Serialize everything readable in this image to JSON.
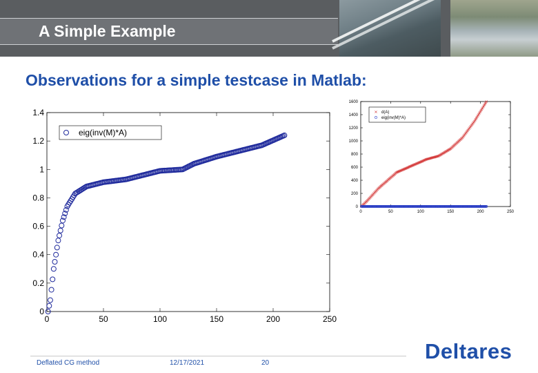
{
  "header": {
    "title": "A Simple Example"
  },
  "subtitle": "Observations for a simple testcase in Matlab:",
  "charts": [
    {
      "type": "scatter",
      "xlim": [
        0,
        250
      ],
      "ylim": [
        0,
        1.4
      ],
      "x_ticks": [
        "0",
        "50",
        "100",
        "150",
        "200",
        "250"
      ],
      "y_ticks": [
        "0",
        "0.2",
        "0.4",
        "0.6",
        "0.8",
        "1",
        "1.2",
        "1.4"
      ],
      "legend": {
        "position": "top-left",
        "entries": [
          "eig(inv(M)*A)"
        ]
      },
      "series": [
        {
          "name": "eig(inv(M)*A)",
          "color": "#1f2a9c",
          "marker": "circle",
          "profile": [
            [
              1,
              0.0
            ],
            [
              3,
              0.08
            ],
            [
              6,
              0.3
            ],
            [
              10,
              0.5
            ],
            [
              14,
              0.64
            ],
            [
              18,
              0.74
            ],
            [
              25,
              0.83
            ],
            [
              35,
              0.88
            ],
            [
              50,
              0.91
            ],
            [
              70,
              0.93
            ],
            [
              90,
              0.97
            ],
            [
              100,
              0.99
            ],
            [
              120,
              1.0
            ],
            [
              130,
              1.04
            ],
            [
              150,
              1.09
            ],
            [
              170,
              1.13
            ],
            [
              190,
              1.17
            ],
            [
              210,
              1.24
            ]
          ],
          "count": 210
        }
      ]
    },
    {
      "type": "scatter",
      "xlim": [
        0,
        250
      ],
      "ylim": [
        0,
        1600
      ],
      "x_ticks": [
        "0",
        "50",
        "100",
        "150",
        "200",
        "250"
      ],
      "y_ticks": [
        "0",
        "200",
        "400",
        "600",
        "800",
        "1000",
        "1200",
        "1400",
        "1600"
      ],
      "legend": {
        "position": "top-left",
        "entries": [
          "d(A)",
          "eig(inv(M)*A)"
        ]
      },
      "series": [
        {
          "name": "d(A)",
          "color": "#d43a3a",
          "marker": "x",
          "profile": [
            [
              1,
              0
            ],
            [
              10,
              80
            ],
            [
              30,
              280
            ],
            [
              60,
              520
            ],
            [
              90,
              640
            ],
            [
              110,
              720
            ],
            [
              130,
              770
            ],
            [
              150,
              880
            ],
            [
              170,
              1050
            ],
            [
              190,
              1300
            ],
            [
              210,
              1600
            ]
          ],
          "count": 210
        },
        {
          "name": "eig(inv(M)*A)",
          "color": "#2a3ec8",
          "marker": "circle",
          "profile": [
            [
              1,
              1
            ],
            [
              210,
              1
            ]
          ],
          "count": 210
        }
      ]
    }
  ],
  "footer": {
    "left": "Deflated CG method",
    "date": "12/17/2021",
    "page": "20"
  },
  "logo": "Deltares"
}
